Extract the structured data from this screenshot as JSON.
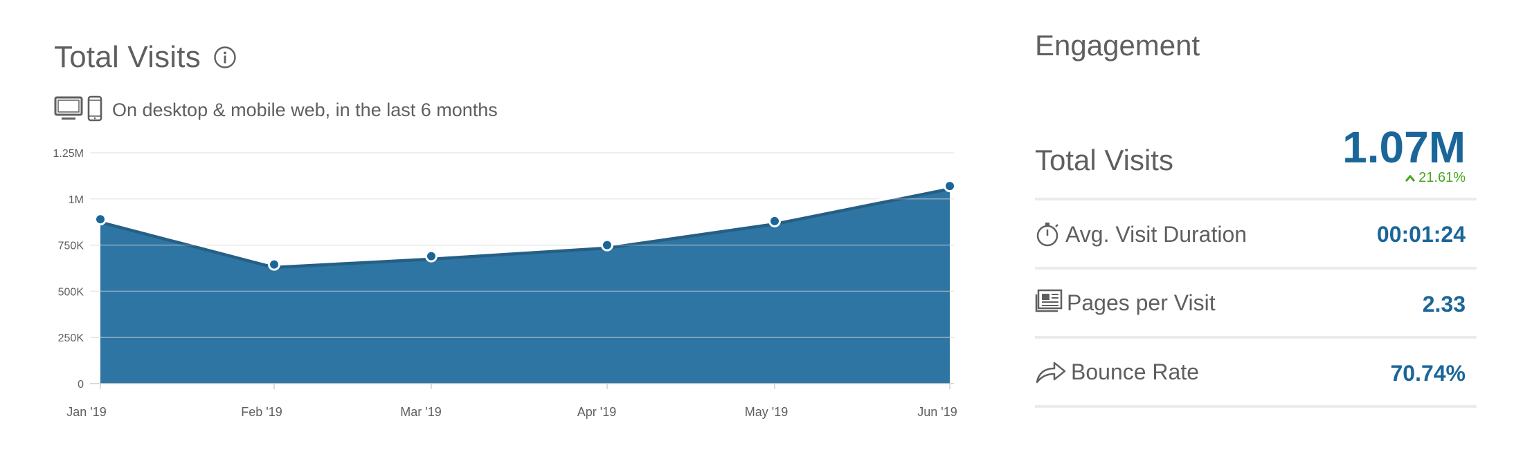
{
  "header": {
    "title": "Total Visits",
    "subtitle": "On desktop & mobile web, in the last 6 months"
  },
  "icons": {
    "info": "info-icon",
    "desktop": "desktop-icon",
    "mobile": "mobile-icon",
    "stopwatch": "stopwatch-icon",
    "pages": "pages-icon",
    "bounce": "share-arrow-icon",
    "change_up": "chevron-up-icon"
  },
  "colors": {
    "area": "#2e75a3",
    "value": "#1a6699",
    "positive": "#4aa420",
    "text": "#5f5f5f"
  },
  "chart_data": {
    "type": "area",
    "title": "Total Visits",
    "categories": [
      "Jan '19",
      "Feb '19",
      "Mar '19",
      "Apr '19",
      "May '19",
      "Jun '19"
    ],
    "series": [
      {
        "values": [
          890000,
          645000,
          690000,
          750000,
          880000,
          1070000
        ]
      }
    ],
    "yticks": [
      0,
      250000,
      500000,
      750000,
      1000000,
      1250000
    ],
    "ytick_labels": [
      "0",
      "250K",
      "500K",
      "750K",
      "1M",
      "1.25M"
    ],
    "ylim": [
      0,
      1250000
    ],
    "grid": true,
    "xlabel": "",
    "ylabel": ""
  },
  "engagement": {
    "title": "Engagement",
    "total_visits": {
      "label": "Total Visits",
      "value": "1.07M",
      "change": "21.61%"
    },
    "metrics": [
      {
        "label": "Avg. Visit Duration",
        "value": "00:01:24"
      },
      {
        "label": "Pages per Visit",
        "value": "2.33"
      },
      {
        "label": "Bounce Rate",
        "value": "70.74%"
      }
    ]
  }
}
